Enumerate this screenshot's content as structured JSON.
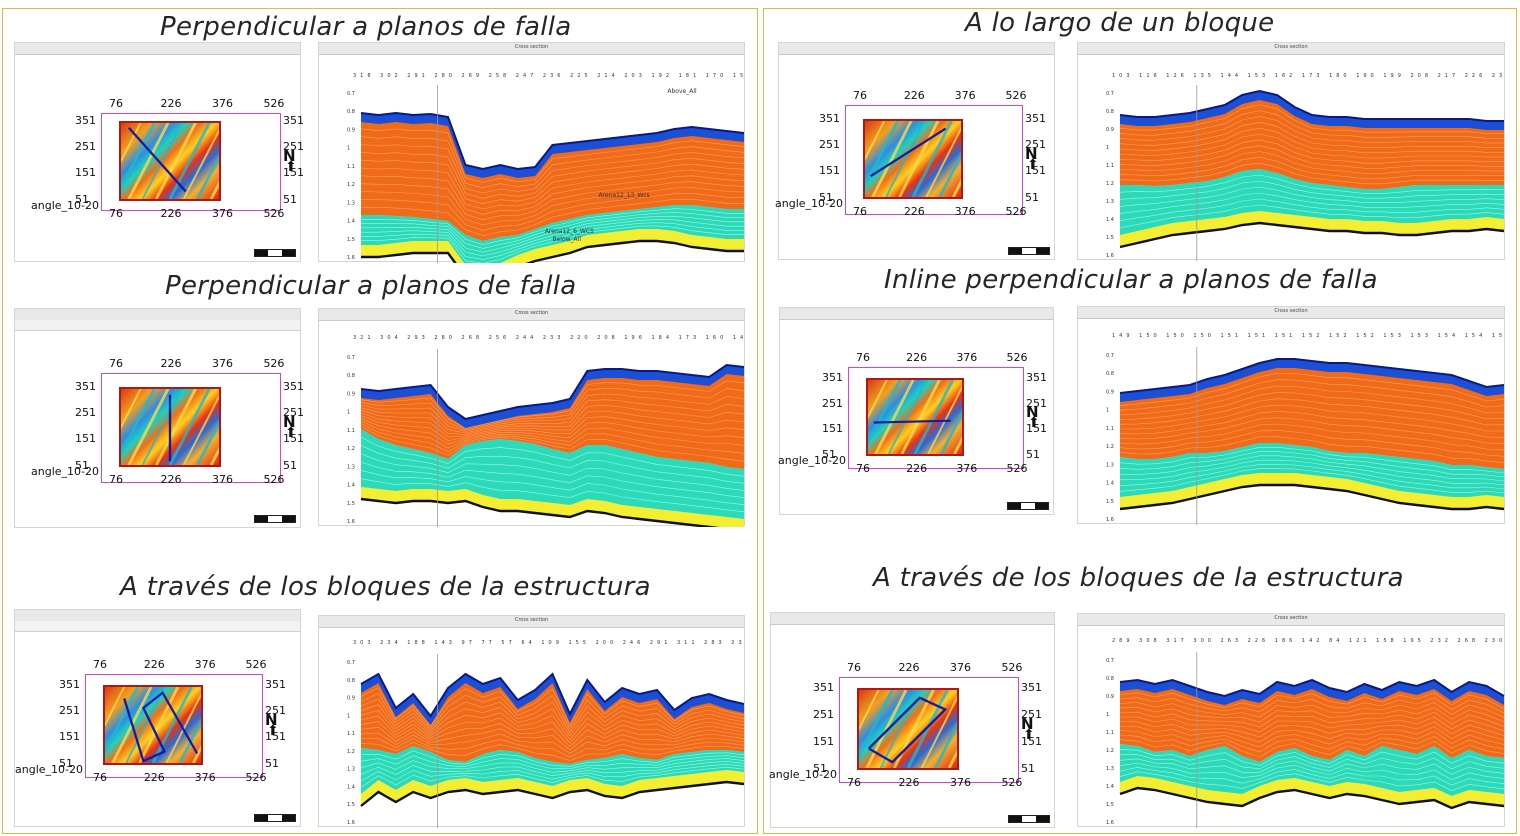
{
  "titles": {
    "l1": "Perpendicular a planos de falla",
    "l2": "Perpendicular a planos de falla",
    "l3": "A través de los bloques de la estructura",
    "r1": "A lo largo de un bloque",
    "r2": "Inline perpendicular a planos de falla",
    "r3": "A través de los bloques de la estructura"
  },
  "map": {
    "x_labels": [
      "76",
      "226",
      "376",
      "526"
    ],
    "y_labels": [
      "351",
      "251",
      "151",
      "51"
    ],
    "north": "N",
    "angle_label": "angle_10-20"
  },
  "section": {
    "window_title": "Cross section",
    "time_ticks": [
      "0.7",
      "0.8",
      "0.9",
      "1",
      "1.1",
      "1.2",
      "1.3",
      "1.4",
      "1.5",
      "1.6"
    ],
    "time_label": "Time [s]",
    "top_ticks": {
      "l1": "318 302 291 280 269 258 247 236 225 214 203 192 181 170 159 148 137 126 115 104 93 82 61",
      "l2": "321 304 293 280 268 256 244 233 220 208 196 184 173 160 148 136 124 112 100 88 76 54",
      "l3": "303 234 188 143 97 77 57 64 109 155 200 246 291 311 283 237 192 146 106 151 197 243 322",
      "r1": "103 116 126 135 144 153 162 173 180 190 199 208 217 226 235 244 254 263 272 281 290 299 314",
      "r2": "149 150 150 150 151 151 151 152 152 152 153 153 154 154 154 155 155 155 156 156 157",
      "r3": "289 308 317 300 263 226 186 142 84 121 158 195 232 268 230 181 145 109 72 52 64 76 146"
    },
    "annotations": {
      "above": "Above_All",
      "horizon1": "Arena12_13_Wcs",
      "horizon2": "Arena12_6_WCS",
      "below": "Below_All"
    }
  },
  "colors": {
    "frame_border": "#e0b84a",
    "map_frame": "#d444d4",
    "section_top": "#1a4fd6",
    "section_orange": "#f06a1a",
    "section_teal": "#2cd9b8",
    "section_yellow": "#f4ee33",
    "section_base": "#111111"
  }
}
